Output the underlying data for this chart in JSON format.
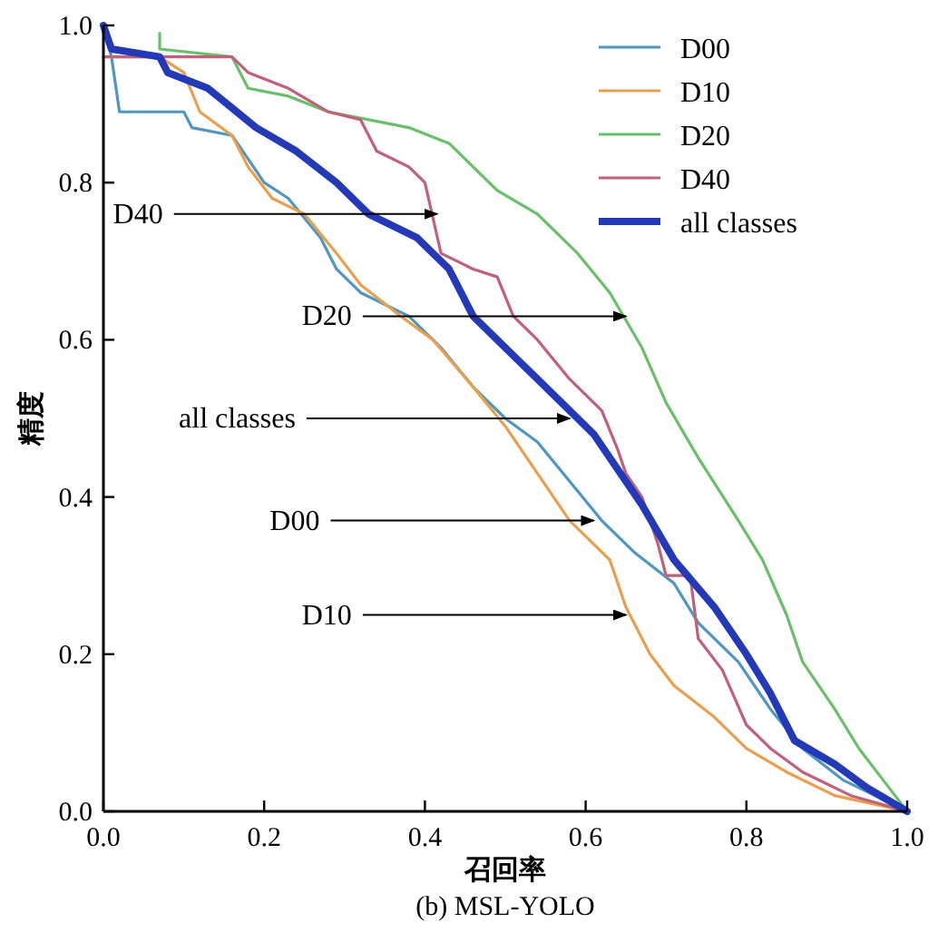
{
  "chart_data": {
    "type": "line",
    "xlabel": "召回率",
    "ylabel": "精度",
    "xlim": [
      0,
      1
    ],
    "ylim": [
      0,
      1
    ],
    "xticks": [
      {
        "value": 0,
        "label": "0.0"
      },
      0.2,
      0.4,
      0.6,
      0.8,
      {
        "value": 1,
        "label": "1.0"
      }
    ],
    "yticks": [
      {
        "value": 0,
        "label": "0.0"
      },
      0.2,
      0.4,
      0.6,
      0.8,
      {
        "value": 1,
        "label": "1.0"
      }
    ],
    "grid": false,
    "legend": "top right",
    "marker": "none",
    "line_style": "solid",
    "series": [
      {
        "name": "D00",
        "color": "#4f97c0",
        "x": [
          0,
          0.01,
          0.02,
          0.1,
          0.11,
          0.16,
          0.18,
          0.2,
          0.23,
          0.27,
          0.29,
          0.32,
          0.38,
          0.42,
          0.46,
          0.5,
          0.54,
          0.58,
          0.62,
          0.66,
          0.71,
          0.74,
          0.79,
          0.83,
          0.87,
          0.92,
          0.96,
          1.0
        ],
        "values": [
          1.0,
          0.96,
          0.89,
          0.89,
          0.87,
          0.86,
          0.83,
          0.8,
          0.78,
          0.73,
          0.69,
          0.66,
          0.63,
          0.59,
          0.54,
          0.5,
          0.47,
          0.42,
          0.37,
          0.33,
          0.29,
          0.24,
          0.19,
          0.13,
          0.08,
          0.04,
          0.02,
          0.0
        ]
      },
      {
        "name": "D10",
        "color": "#e8a04e",
        "x": [
          0,
          0.07,
          0.1,
          0.12,
          0.16,
          0.18,
          0.21,
          0.25,
          0.29,
          0.32,
          0.37,
          0.41,
          0.46,
          0.5,
          0.54,
          0.58,
          0.63,
          0.65,
          0.68,
          0.71,
          0.76,
          0.8,
          0.85,
          0.91,
          1.0
        ],
        "values": [
          0.96,
          0.96,
          0.94,
          0.89,
          0.86,
          0.82,
          0.78,
          0.76,
          0.71,
          0.67,
          0.63,
          0.6,
          0.54,
          0.49,
          0.43,
          0.37,
          0.32,
          0.26,
          0.2,
          0.16,
          0.12,
          0.08,
          0.05,
          0.02,
          0.0
        ]
      },
      {
        "name": "D20",
        "color": "#6abf6a",
        "x": [
          0.07,
          0.07,
          0.16,
          0.18,
          0.23,
          0.28,
          0.33,
          0.38,
          0.43,
          0.46,
          0.49,
          0.54,
          0.59,
          0.63,
          0.67,
          0.7,
          0.74,
          0.79,
          0.82,
          0.85,
          0.87,
          0.91,
          0.94,
          0.97,
          1.0
        ],
        "values": [
          0.99,
          0.97,
          0.96,
          0.92,
          0.91,
          0.89,
          0.88,
          0.87,
          0.85,
          0.82,
          0.79,
          0.76,
          0.71,
          0.66,
          0.59,
          0.52,
          0.45,
          0.37,
          0.32,
          0.25,
          0.19,
          0.13,
          0.08,
          0.04,
          0.0
        ]
      },
      {
        "name": "D40",
        "color": "#c0607a",
        "x": [
          0,
          0.16,
          0.18,
          0.23,
          0.28,
          0.32,
          0.34,
          0.38,
          0.4,
          0.42,
          0.46,
          0.49,
          0.51,
          0.54,
          0.58,
          0.62,
          0.64,
          0.65,
          0.67,
          0.69,
          0.7,
          0.73,
          0.74,
          0.77,
          0.8,
          0.83,
          0.87,
          0.93,
          1.0
        ],
        "values": [
          0.96,
          0.96,
          0.94,
          0.92,
          0.89,
          0.88,
          0.84,
          0.82,
          0.8,
          0.71,
          0.69,
          0.68,
          0.63,
          0.6,
          0.55,
          0.51,
          0.46,
          0.43,
          0.4,
          0.34,
          0.3,
          0.3,
          0.22,
          0.18,
          0.11,
          0.08,
          0.05,
          0.02,
          0.0
        ]
      },
      {
        "name": "all classes",
        "color": "#2339b8",
        "x": [
          0,
          0.01,
          0.07,
          0.08,
          0.13,
          0.19,
          0.24,
          0.29,
          0.33,
          0.39,
          0.43,
          0.46,
          0.5,
          0.54,
          0.57,
          0.61,
          0.67,
          0.71,
          0.76,
          0.8,
          0.83,
          0.86,
          0.91,
          0.95,
          1.0
        ],
        "values": [
          1.0,
          0.97,
          0.96,
          0.94,
          0.92,
          0.87,
          0.84,
          0.8,
          0.76,
          0.73,
          0.69,
          0.63,
          0.59,
          0.55,
          0.52,
          0.48,
          0.39,
          0.32,
          0.26,
          0.2,
          0.15,
          0.09,
          0.06,
          0.03,
          0.0
        ]
      }
    ],
    "annotations": [
      {
        "text": "D40",
        "x": 0.415,
        "y": 0.76
      },
      {
        "text": "D20",
        "x": 0.65,
        "y": 0.63
      },
      {
        "text": "all classes",
        "x": 0.58,
        "y": 0.5
      },
      {
        "text": "D00",
        "x": 0.61,
        "y": 0.37
      },
      {
        "text": "D10",
        "x": 0.65,
        "y": 0.25
      },
      "(b) MSL-YOLO"
    ]
  }
}
